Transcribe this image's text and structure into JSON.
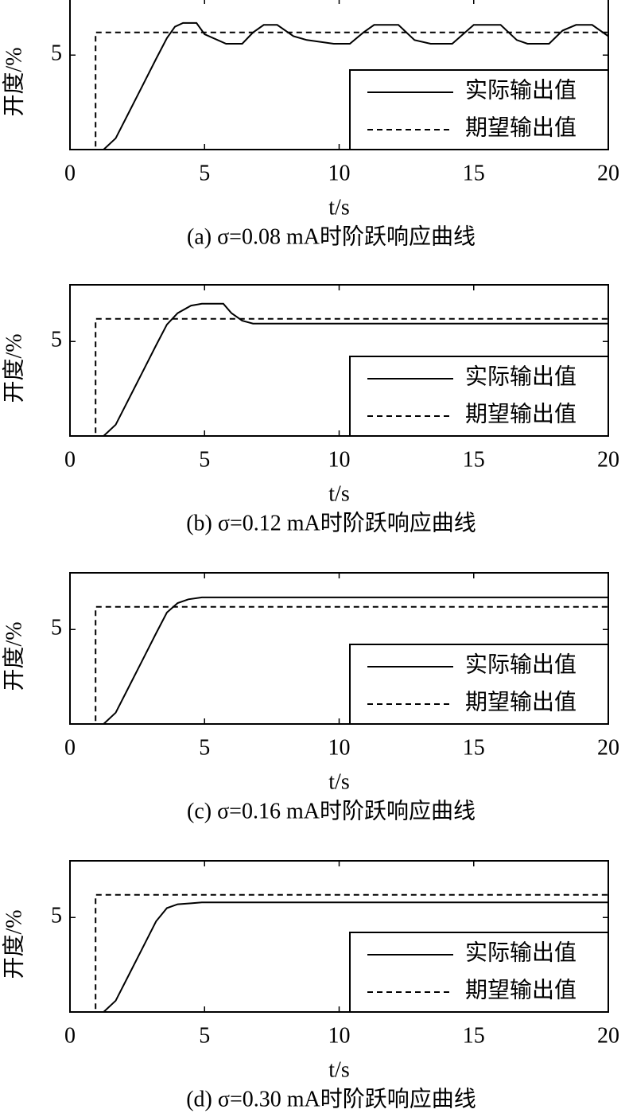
{
  "chart_data": [
    {
      "type": "line",
      "caption": "(a) σ=0.08 mA时阶跃响应曲线",
      "xlabel": "t/s",
      "ylabel": "开度/%",
      "xlim": [
        0,
        20
      ],
      "xticks": [
        0,
        5,
        10,
        15,
        20
      ],
      "ylim": [
        0,
        8
      ],
      "yticks": [
        5
      ],
      "legend": "lower right",
      "series": [
        {
          "name": "实际输出值",
          "color": "#000000",
          "dash": false,
          "x": [
            1.25,
            1.7,
            2.2,
            2.7,
            3.2,
            3.6,
            3.9,
            4.2,
            4.7,
            5.0,
            5.8,
            6.4,
            6.8,
            7.2,
            7.7,
            8.3,
            8.8,
            9.8,
            10.4,
            10.9,
            11.3,
            12.2,
            12.8,
            13.4,
            14.2,
            14.6,
            15.0,
            16.0,
            16.6,
            17.0,
            17.8,
            18.3,
            18.8,
            19.4,
            20
          ],
          "values": [
            0,
            0.6,
            2.0,
            3.4,
            4.8,
            5.9,
            6.5,
            6.7,
            6.7,
            6.1,
            5.6,
            5.6,
            6.2,
            6.6,
            6.6,
            6.0,
            5.8,
            5.6,
            5.6,
            6.2,
            6.6,
            6.6,
            5.8,
            5.6,
            5.6,
            6.1,
            6.6,
            6.6,
            5.8,
            5.6,
            5.6,
            6.3,
            6.6,
            6.6,
            6.0
          ]
        },
        {
          "name": "期望输出值",
          "color": "#000000",
          "dash": true,
          "x": [
            0,
            0.95,
            0.95,
            20
          ],
          "values": [
            0,
            0,
            6.2,
            6.2
          ]
        }
      ]
    },
    {
      "type": "line",
      "caption": "(b) σ=0.12 mA时阶跃响应曲线",
      "xlabel": "t/s",
      "ylabel": "开度/%",
      "xlim": [
        0,
        20
      ],
      "xticks": [
        0,
        5,
        10,
        15,
        20
      ],
      "ylim": [
        0,
        8
      ],
      "yticks": [
        5
      ],
      "legend": "lower right",
      "series": [
        {
          "name": "实际输出值",
          "color": "#000000",
          "dash": false,
          "x": [
            1.25,
            1.7,
            2.2,
            2.7,
            3.2,
            3.6,
            4.0,
            4.5,
            4.9,
            5.7,
            6.0,
            6.4,
            6.8,
            20
          ],
          "values": [
            0,
            0.6,
            2.0,
            3.4,
            4.8,
            5.9,
            6.5,
            6.9,
            7.0,
            7.0,
            6.5,
            6.1,
            5.95,
            5.95
          ]
        },
        {
          "name": "期望输出值",
          "color": "#000000",
          "dash": true,
          "x": [
            0,
            0.95,
            0.95,
            20
          ],
          "values": [
            0,
            0,
            6.2,
            6.2
          ]
        }
      ]
    },
    {
      "type": "line",
      "caption": "(c) σ=0.16 mA时阶跃响应曲线",
      "xlabel": "t/s",
      "ylabel": "开度/%",
      "xlim": [
        0,
        20
      ],
      "xticks": [
        0,
        5,
        10,
        15,
        20
      ],
      "ylim": [
        0,
        8
      ],
      "yticks": [
        5
      ],
      "legend": "lower right",
      "series": [
        {
          "name": "实际输出值",
          "color": "#000000",
          "dash": false,
          "x": [
            1.25,
            1.7,
            2.2,
            2.7,
            3.2,
            3.6,
            4.0,
            4.4,
            4.9,
            20
          ],
          "values": [
            0,
            0.6,
            2.0,
            3.4,
            4.8,
            5.9,
            6.4,
            6.6,
            6.7,
            6.7
          ]
        },
        {
          "name": "期望输出值",
          "color": "#000000",
          "dash": true,
          "x": [
            0,
            0.95,
            0.95,
            20
          ],
          "values": [
            0,
            0,
            6.2,
            6.2
          ]
        }
      ]
    },
    {
      "type": "line",
      "caption": "(d) σ=0.30 mA时阶跃响应曲线",
      "xlabel": "t/s",
      "ylabel": "开度/%",
      "xlim": [
        0,
        20
      ],
      "xticks": [
        0,
        5,
        10,
        15,
        20
      ],
      "ylim": [
        0,
        8
      ],
      "yticks": [
        5
      ],
      "legend": "lower right",
      "series": [
        {
          "name": "实际输出值",
          "color": "#000000",
          "dash": false,
          "x": [
            1.25,
            1.7,
            2.2,
            2.7,
            3.2,
            3.6,
            4.0,
            4.5,
            4.9,
            20
          ],
          "values": [
            0,
            0.6,
            2.0,
            3.4,
            4.8,
            5.5,
            5.7,
            5.75,
            5.8,
            5.8
          ]
        },
        {
          "name": "期望输出值",
          "color": "#000000",
          "dash": true,
          "x": [
            0,
            0.95,
            0.95,
            20
          ],
          "values": [
            0,
            0,
            6.2,
            6.2
          ]
        }
      ]
    }
  ]
}
